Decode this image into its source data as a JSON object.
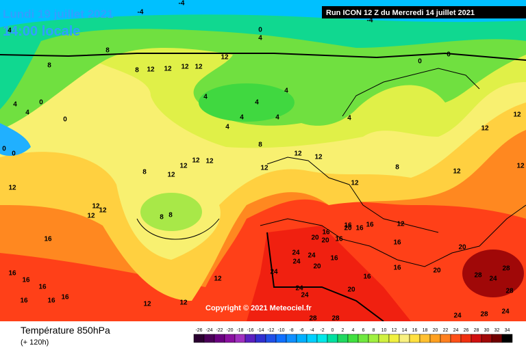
{
  "header": {
    "date": "Lundi 19 juillet 2021",
    "time": "14:00 locale",
    "run": "Run ICON 12 Z du Mercredi 14 juillet 2021"
  },
  "copyright": "Copyright © 2021 Meteociel.fr",
  "footer": {
    "title": "Température 850hPa",
    "lead": "(+ 120h)"
  },
  "contour_labels": [
    -4,
    -4,
    -4,
    4,
    0,
    4,
    8,
    8,
    0,
    0,
    12,
    12,
    12,
    12,
    12,
    8,
    4,
    4,
    4,
    4,
    4,
    4,
    0,
    4,
    4,
    0,
    4,
    12,
    12,
    8,
    0,
    0,
    12,
    12,
    8,
    12,
    12,
    12,
    12,
    12,
    12,
    12,
    12,
    12,
    8,
    12,
    12,
    12,
    8,
    8,
    16,
    16,
    20,
    20,
    16,
    16,
    20,
    16,
    16,
    12,
    16,
    20,
    24,
    24,
    24,
    16,
    20,
    24,
    16,
    16,
    16,
    16,
    16,
    20,
    28,
    28,
    24,
    28,
    12,
    20,
    24,
    24,
    12,
    12,
    16,
    16,
    16,
    28,
    24,
    28,
    28,
    24
  ],
  "scale": [
    {
      "label": -26,
      "color": "#2a0030"
    },
    {
      "label": -24,
      "color": "#4a0058"
    },
    {
      "label": -22,
      "color": "#6a0080"
    },
    {
      "label": -20,
      "color": "#8a10a0"
    },
    {
      "label": -18,
      "color": "#a030c0"
    },
    {
      "label": -16,
      "color": "#5a20c0"
    },
    {
      "label": -14,
      "color": "#3030d0"
    },
    {
      "label": -12,
      "color": "#2050e8"
    },
    {
      "label": -10,
      "color": "#1070ff"
    },
    {
      "label": -8,
      "color": "#1090ff"
    },
    {
      "label": -6,
      "color": "#00b0ff"
    },
    {
      "label": -4,
      "color": "#00d0ff"
    },
    {
      "label": -2,
      "color": "#00e8e8"
    },
    {
      "label": 0,
      "color": "#00e0a0"
    },
    {
      "label": 2,
      "color": "#20d860"
    },
    {
      "label": 4,
      "color": "#40e040"
    },
    {
      "label": 6,
      "color": "#70e840"
    },
    {
      "label": 8,
      "color": "#a0f040"
    },
    {
      "label": 10,
      "color": "#d0f040"
    },
    {
      "label": 12,
      "color": "#f0f040"
    },
    {
      "label": 14,
      "color": "#f8f080"
    },
    {
      "label": 16,
      "color": "#ffe040"
    },
    {
      "label": 18,
      "color": "#ffc030"
    },
    {
      "label": 20,
      "color": "#ffa020"
    },
    {
      "label": 22,
      "color": "#ff8020"
    },
    {
      "label": 24,
      "color": "#ff5018"
    },
    {
      "label": 26,
      "color": "#f03010"
    },
    {
      "label": 28,
      "color": "#d01010"
    },
    {
      "label": 30,
      "color": "#a00808"
    },
    {
      "label": 32,
      "color": "#700000"
    },
    {
      "label": 34,
      "color": "#000000"
    }
  ]
}
